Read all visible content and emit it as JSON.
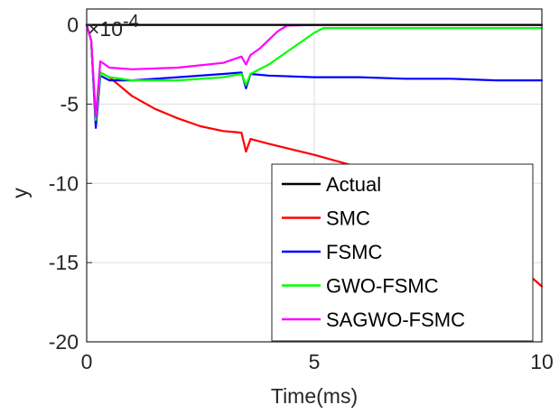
{
  "chart_data": {
    "type": "line",
    "xlabel": "Time(ms)",
    "ylabel": "y",
    "exponent_label": "×10",
    "exponent_power": "-4",
    "xlim": [
      0,
      10
    ],
    "ylim": [
      -20,
      1
    ],
    "xticks": [
      0,
      5,
      10
    ],
    "xtick_labels": [
      "0",
      "5",
      "10"
    ],
    "yticks": [
      0,
      -5,
      -10,
      -15,
      -20
    ],
    "ytick_labels": [
      "0",
      "-5",
      "-10",
      "-15",
      "-20"
    ],
    "grid": true,
    "legend_position": "bottom-right",
    "series": [
      {
        "name": "Actual",
        "color": "#000000",
        "x": [
          0,
          10
        ],
        "y": [
          0,
          0
        ]
      },
      {
        "name": "SMC",
        "color": "#ff0000",
        "x": [
          0,
          0.1,
          0.2,
          0.3,
          0.5,
          1,
          1.5,
          2,
          2.5,
          3,
          3.4,
          3.5,
          3.6,
          4,
          5,
          6,
          7,
          8,
          9,
          10
        ],
        "y": [
          0,
          -1,
          -6.3,
          -3,
          -3.3,
          -4.5,
          -5.3,
          -5.9,
          -6.4,
          -6.7,
          -6.8,
          -8,
          -7.2,
          -7.5,
          -8.2,
          -9,
          -10,
          -11.7,
          -14,
          -16.5
        ]
      },
      {
        "name": "FSMC",
        "color": "#0000ff",
        "x": [
          0,
          0.1,
          0.2,
          0.3,
          0.5,
          1,
          2,
          3,
          3.4,
          3.5,
          3.6,
          4,
          5,
          6,
          7,
          8,
          9,
          10
        ],
        "y": [
          0,
          -1,
          -6.5,
          -3.2,
          -3.5,
          -3.5,
          -3.3,
          -3.1,
          -3,
          -4,
          -3.1,
          -3.2,
          -3.3,
          -3.3,
          -3.4,
          -3.4,
          -3.5,
          -3.5
        ]
      },
      {
        "name": "GWO-FSMC",
        "color": "#00ff00",
        "x": [
          0,
          0.1,
          0.2,
          0.3,
          0.5,
          1,
          2,
          3,
          3.4,
          3.5,
          3.6,
          4,
          5,
          5.2,
          6,
          7,
          8,
          9,
          10
        ],
        "y": [
          0,
          -1,
          -6,
          -3,
          -3.3,
          -3.5,
          -3.5,
          -3.3,
          -3.1,
          -3.8,
          -3.1,
          -2.5,
          -0.5,
          -0.2,
          -0.2,
          -0.2,
          -0.2,
          -0.2,
          -0.2
        ]
      },
      {
        "name": "SAGWO-FSMC",
        "color": "#ff00ff",
        "x": [
          0,
          0.1,
          0.2,
          0.3,
          0.5,
          1,
          2,
          3,
          3.4,
          3.5,
          3.6,
          3.8,
          4.2,
          4.4,
          5,
          6,
          7,
          8,
          9,
          10
        ],
        "y": [
          0,
          -1,
          -5.8,
          -2.3,
          -2.7,
          -2.8,
          -2.7,
          -2.4,
          -2,
          -2.5,
          -1.9,
          -1.5,
          -0.4,
          -0.05,
          0,
          0,
          0,
          0,
          0,
          0
        ]
      }
    ]
  }
}
